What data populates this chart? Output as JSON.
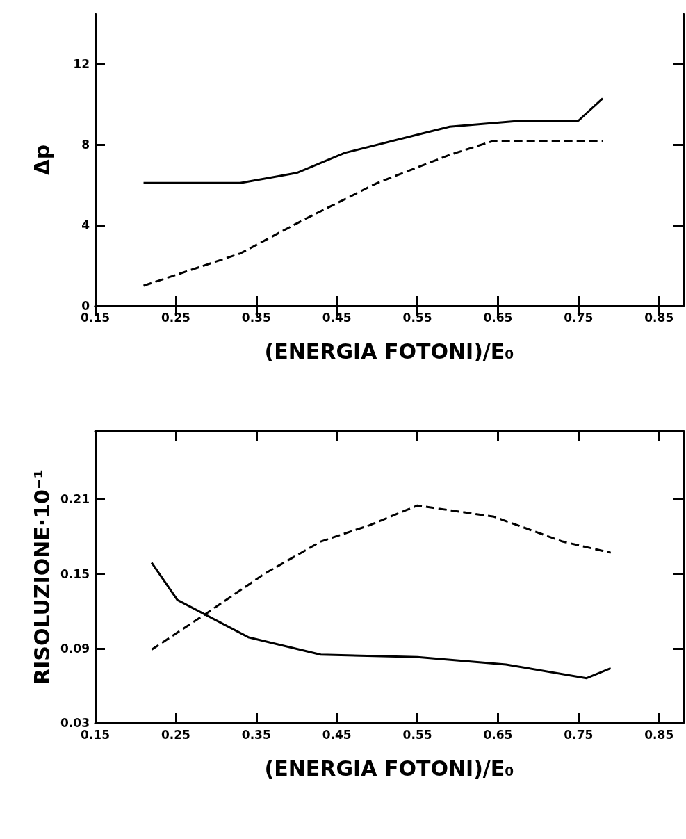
{
  "chart_data": [
    {
      "type": "line",
      "ylabel": "Δp",
      "xlabel": "(ENERGIA FOTONI)/E₀",
      "xlim": [
        0.15,
        0.88
      ],
      "xticks": [
        0.15,
        0.25,
        0.35,
        0.45,
        0.55,
        0.65,
        0.75,
        0.85
      ],
      "ylim": [
        0,
        14.5
      ],
      "yticks": [
        0,
        4,
        8,
        12
      ],
      "grid": false,
      "marker": "none",
      "series": [
        {
          "color": "#000000",
          "line_style": "solid",
          "x": [
            0.21,
            0.33,
            0.4,
            0.46,
            0.55,
            0.59,
            0.68,
            0.75,
            0.78
          ],
          "values": [
            6.1,
            6.1,
            6.6,
            7.6,
            8.5,
            8.9,
            9.2,
            9.2,
            10.3
          ]
        },
        {
          "color": "#000000",
          "line_style": "dashed",
          "x": [
            0.21,
            0.33,
            0.41,
            0.5,
            0.59,
            0.645,
            0.68,
            0.78
          ],
          "values": [
            1.0,
            2.6,
            4.3,
            6.1,
            7.5,
            8.2,
            8.2,
            8.2
          ]
        }
      ]
    },
    {
      "type": "line",
      "ylabel": "RISOLUZIONE·10⁻¹",
      "xlabel": "(ENERGIA FOTONI)/E₀",
      "xlim": [
        0.15,
        0.88
      ],
      "xticks": [
        0.15,
        0.25,
        0.35,
        0.45,
        0.55,
        0.65,
        0.75,
        0.85
      ],
      "ylim": [
        0.03,
        0.265
      ],
      "yticks": [
        0.03,
        0.09,
        0.15,
        0.21
      ],
      "grid": false,
      "marker": "none",
      "series": [
        {
          "color": "#000000",
          "line_style": "solid",
          "x": [
            0.22,
            0.252,
            0.34,
            0.43,
            0.55,
            0.66,
            0.76,
            0.79
          ],
          "values": [
            0.159,
            0.129,
            0.099,
            0.085,
            0.083,
            0.077,
            0.066,
            0.074
          ]
        },
        {
          "color": "#000000",
          "line_style": "dashed",
          "x": [
            0.22,
            0.29,
            0.36,
            0.43,
            0.49,
            0.55,
            0.645,
            0.73,
            0.79
          ],
          "values": [
            0.089,
            0.119,
            0.15,
            0.176,
            0.189,
            0.205,
            0.196,
            0.176,
            0.167
          ]
        }
      ]
    }
  ]
}
